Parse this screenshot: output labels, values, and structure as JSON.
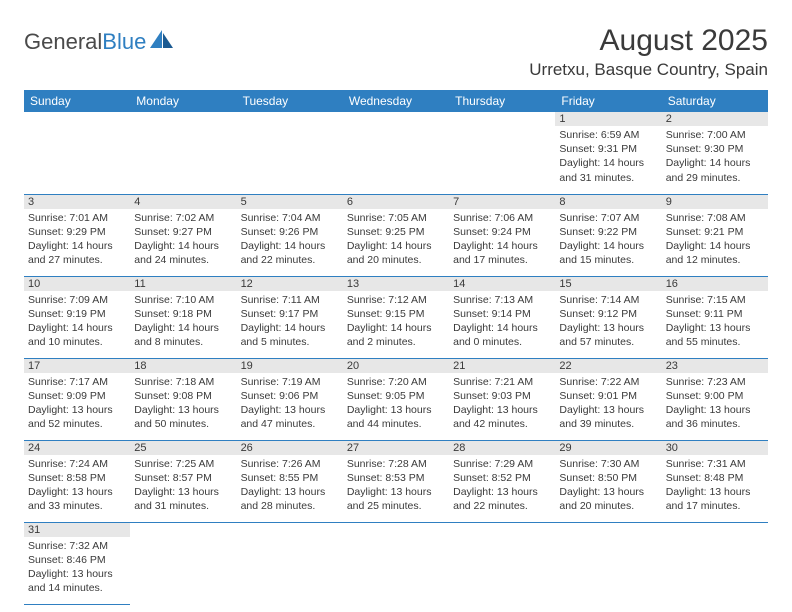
{
  "logo": {
    "word1": "General",
    "word2": "Blue"
  },
  "title": {
    "month": "August 2025",
    "location": "Urretxu, Basque Country, Spain"
  },
  "colors": {
    "header_bg": "#2f7fc1",
    "daynum_bg": "#e7e7e7",
    "rule": "#2f7fc1"
  },
  "day_headers": [
    "Sunday",
    "Monday",
    "Tuesday",
    "Wednesday",
    "Thursday",
    "Friday",
    "Saturday"
  ],
  "weeks": [
    [
      null,
      null,
      null,
      null,
      null,
      {
        "n": "1",
        "sr": "Sunrise: 6:59 AM",
        "ss": "Sunset: 9:31 PM",
        "dl1": "Daylight: 14 hours",
        "dl2": "and 31 minutes."
      },
      {
        "n": "2",
        "sr": "Sunrise: 7:00 AM",
        "ss": "Sunset: 9:30 PM",
        "dl1": "Daylight: 14 hours",
        "dl2": "and 29 minutes."
      }
    ],
    [
      {
        "n": "3",
        "sr": "Sunrise: 7:01 AM",
        "ss": "Sunset: 9:29 PM",
        "dl1": "Daylight: 14 hours",
        "dl2": "and 27 minutes."
      },
      {
        "n": "4",
        "sr": "Sunrise: 7:02 AM",
        "ss": "Sunset: 9:27 PM",
        "dl1": "Daylight: 14 hours",
        "dl2": "and 24 minutes."
      },
      {
        "n": "5",
        "sr": "Sunrise: 7:04 AM",
        "ss": "Sunset: 9:26 PM",
        "dl1": "Daylight: 14 hours",
        "dl2": "and 22 minutes."
      },
      {
        "n": "6",
        "sr": "Sunrise: 7:05 AM",
        "ss": "Sunset: 9:25 PM",
        "dl1": "Daylight: 14 hours",
        "dl2": "and 20 minutes."
      },
      {
        "n": "7",
        "sr": "Sunrise: 7:06 AM",
        "ss": "Sunset: 9:24 PM",
        "dl1": "Daylight: 14 hours",
        "dl2": "and 17 minutes."
      },
      {
        "n": "8",
        "sr": "Sunrise: 7:07 AM",
        "ss": "Sunset: 9:22 PM",
        "dl1": "Daylight: 14 hours",
        "dl2": "and 15 minutes."
      },
      {
        "n": "9",
        "sr": "Sunrise: 7:08 AM",
        "ss": "Sunset: 9:21 PM",
        "dl1": "Daylight: 14 hours",
        "dl2": "and 12 minutes."
      }
    ],
    [
      {
        "n": "10",
        "sr": "Sunrise: 7:09 AM",
        "ss": "Sunset: 9:19 PM",
        "dl1": "Daylight: 14 hours",
        "dl2": "and 10 minutes."
      },
      {
        "n": "11",
        "sr": "Sunrise: 7:10 AM",
        "ss": "Sunset: 9:18 PM",
        "dl1": "Daylight: 14 hours",
        "dl2": "and 8 minutes."
      },
      {
        "n": "12",
        "sr": "Sunrise: 7:11 AM",
        "ss": "Sunset: 9:17 PM",
        "dl1": "Daylight: 14 hours",
        "dl2": "and 5 minutes."
      },
      {
        "n": "13",
        "sr": "Sunrise: 7:12 AM",
        "ss": "Sunset: 9:15 PM",
        "dl1": "Daylight: 14 hours",
        "dl2": "and 2 minutes."
      },
      {
        "n": "14",
        "sr": "Sunrise: 7:13 AM",
        "ss": "Sunset: 9:14 PM",
        "dl1": "Daylight: 14 hours",
        "dl2": "and 0 minutes."
      },
      {
        "n": "15",
        "sr": "Sunrise: 7:14 AM",
        "ss": "Sunset: 9:12 PM",
        "dl1": "Daylight: 13 hours",
        "dl2": "and 57 minutes."
      },
      {
        "n": "16",
        "sr": "Sunrise: 7:15 AM",
        "ss": "Sunset: 9:11 PM",
        "dl1": "Daylight: 13 hours",
        "dl2": "and 55 minutes."
      }
    ],
    [
      {
        "n": "17",
        "sr": "Sunrise: 7:17 AM",
        "ss": "Sunset: 9:09 PM",
        "dl1": "Daylight: 13 hours",
        "dl2": "and 52 minutes."
      },
      {
        "n": "18",
        "sr": "Sunrise: 7:18 AM",
        "ss": "Sunset: 9:08 PM",
        "dl1": "Daylight: 13 hours",
        "dl2": "and 50 minutes."
      },
      {
        "n": "19",
        "sr": "Sunrise: 7:19 AM",
        "ss": "Sunset: 9:06 PM",
        "dl1": "Daylight: 13 hours",
        "dl2": "and 47 minutes."
      },
      {
        "n": "20",
        "sr": "Sunrise: 7:20 AM",
        "ss": "Sunset: 9:05 PM",
        "dl1": "Daylight: 13 hours",
        "dl2": "and 44 minutes."
      },
      {
        "n": "21",
        "sr": "Sunrise: 7:21 AM",
        "ss": "Sunset: 9:03 PM",
        "dl1": "Daylight: 13 hours",
        "dl2": "and 42 minutes."
      },
      {
        "n": "22",
        "sr": "Sunrise: 7:22 AM",
        "ss": "Sunset: 9:01 PM",
        "dl1": "Daylight: 13 hours",
        "dl2": "and 39 minutes."
      },
      {
        "n": "23",
        "sr": "Sunrise: 7:23 AM",
        "ss": "Sunset: 9:00 PM",
        "dl1": "Daylight: 13 hours",
        "dl2": "and 36 minutes."
      }
    ],
    [
      {
        "n": "24",
        "sr": "Sunrise: 7:24 AM",
        "ss": "Sunset: 8:58 PM",
        "dl1": "Daylight: 13 hours",
        "dl2": "and 33 minutes."
      },
      {
        "n": "25",
        "sr": "Sunrise: 7:25 AM",
        "ss": "Sunset: 8:57 PM",
        "dl1": "Daylight: 13 hours",
        "dl2": "and 31 minutes."
      },
      {
        "n": "26",
        "sr": "Sunrise: 7:26 AM",
        "ss": "Sunset: 8:55 PM",
        "dl1": "Daylight: 13 hours",
        "dl2": "and 28 minutes."
      },
      {
        "n": "27",
        "sr": "Sunrise: 7:28 AM",
        "ss": "Sunset: 8:53 PM",
        "dl1": "Daylight: 13 hours",
        "dl2": "and 25 minutes."
      },
      {
        "n": "28",
        "sr": "Sunrise: 7:29 AM",
        "ss": "Sunset: 8:52 PM",
        "dl1": "Daylight: 13 hours",
        "dl2": "and 22 minutes."
      },
      {
        "n": "29",
        "sr": "Sunrise: 7:30 AM",
        "ss": "Sunset: 8:50 PM",
        "dl1": "Daylight: 13 hours",
        "dl2": "and 20 minutes."
      },
      {
        "n": "30",
        "sr": "Sunrise: 7:31 AM",
        "ss": "Sunset: 8:48 PM",
        "dl1": "Daylight: 13 hours",
        "dl2": "and 17 minutes."
      }
    ],
    [
      {
        "n": "31",
        "sr": "Sunrise: 7:32 AM",
        "ss": "Sunset: 8:46 PM",
        "dl1": "Daylight: 13 hours",
        "dl2": "and 14 minutes."
      },
      null,
      null,
      null,
      null,
      null,
      null
    ]
  ]
}
